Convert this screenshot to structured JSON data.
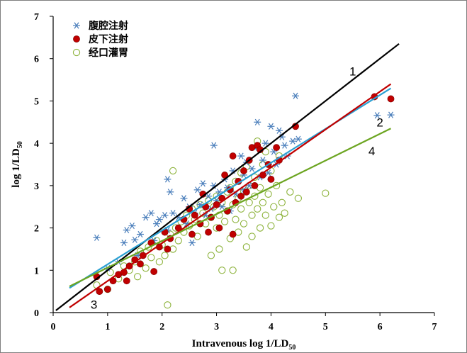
{
  "chart_data": {
    "type": "scatter",
    "xlabel": "Intravenous log 1/LD",
    "xlabel_sub": "50",
    "ylabel": "log 1/LD",
    "ylabel_sub": "50",
    "xlim": [
      0,
      7
    ],
    "ylim": [
      0,
      7
    ],
    "xticks": [
      "0",
      "1",
      "2",
      "3",
      "4",
      "5",
      "6",
      "7"
    ],
    "yticks": [
      "0",
      "1",
      "2",
      "3",
      "4",
      "5",
      "6",
      "7"
    ],
    "grid": false,
    "legend_position": "top-left",
    "series": [
      {
        "name": "腹腔注射",
        "marker": "asterisk",
        "color": "#4a7ebb",
        "points": [
          [
            0.8,
            1.77
          ],
          [
            1.0,
            1.05
          ],
          [
            1.2,
            1.2
          ],
          [
            1.3,
            1.65
          ],
          [
            1.35,
            1.95
          ],
          [
            1.45,
            2.05
          ],
          [
            1.5,
            1.72
          ],
          [
            1.55,
            1.35
          ],
          [
            1.6,
            1.85
          ],
          [
            1.7,
            2.25
          ],
          [
            1.8,
            2.35
          ],
          [
            1.85,
            1.7
          ],
          [
            1.9,
            2.1
          ],
          [
            1.95,
            2.2
          ],
          [
            2.05,
            2.3
          ],
          [
            2.1,
            1.95
          ],
          [
            2.1,
            3.15
          ],
          [
            2.15,
            2.85
          ],
          [
            2.2,
            2.35
          ],
          [
            2.3,
            2.25
          ],
          [
            2.4,
            2.7
          ],
          [
            2.45,
            2.1
          ],
          [
            2.5,
            2.5
          ],
          [
            2.55,
            1.65
          ],
          [
            2.6,
            2.35
          ],
          [
            2.65,
            2.9
          ],
          [
            2.7,
            2.55
          ],
          [
            2.75,
            3.05
          ],
          [
            2.8,
            2.3
          ],
          [
            2.85,
            2.75
          ],
          [
            2.9,
            2.45
          ],
          [
            2.95,
            3.0
          ],
          [
            2.95,
            3.95
          ],
          [
            3.0,
            2.65
          ],
          [
            3.05,
            2.85
          ],
          [
            3.1,
            2.5
          ],
          [
            3.15,
            3.15
          ],
          [
            3.2,
            2.95
          ],
          [
            3.25,
            2.4
          ],
          [
            3.3,
            3.35
          ],
          [
            3.35,
            2.8
          ],
          [
            3.4,
            3.1
          ],
          [
            3.45,
            3.7
          ],
          [
            3.5,
            2.9
          ],
          [
            3.5,
            3.25
          ],
          [
            3.55,
            3.55
          ],
          [
            3.6,
            3.0
          ],
          [
            3.65,
            3.4
          ],
          [
            3.7,
            3.9
          ],
          [
            3.75,
            4.5
          ],
          [
            3.8,
            3.2
          ],
          [
            3.85,
            3.6
          ],
          [
            3.9,
            4.0
          ],
          [
            3.95,
            3.3
          ],
          [
            4.0,
            4.4
          ],
          [
            4.05,
            3.8
          ],
          [
            4.1,
            3.5
          ],
          [
            4.15,
            4.3
          ],
          [
            4.2,
            4.15
          ],
          [
            4.25,
            3.95
          ],
          [
            4.3,
            3.7
          ],
          [
            4.4,
            4.05
          ],
          [
            4.45,
            5.12
          ],
          [
            4.5,
            4.1
          ],
          [
            5.95,
            4.66
          ],
          [
            6.2,
            4.67
          ]
        ]
      },
      {
        "name": "皮下注射",
        "marker": "filled-circle",
        "color": "#c00000",
        "points": [
          [
            0.8,
            0.85
          ],
          [
            0.85,
            0.5
          ],
          [
            1.0,
            0.55
          ],
          [
            1.1,
            0.75
          ],
          [
            1.2,
            0.9
          ],
          [
            1.3,
            0.95
          ],
          [
            1.35,
            0.75
          ],
          [
            1.4,
            1.1
          ],
          [
            1.5,
            1.25
          ],
          [
            1.6,
            1.15
          ],
          [
            1.65,
            1.35
          ],
          [
            1.8,
            1.65
          ],
          [
            1.85,
            0.97
          ],
          [
            1.95,
            1.55
          ],
          [
            2.05,
            1.9
          ],
          [
            2.1,
            1.5
          ],
          [
            2.15,
            1.75
          ],
          [
            2.3,
            2.0
          ],
          [
            2.4,
            2.2
          ],
          [
            2.5,
            2.45
          ],
          [
            2.55,
            1.85
          ],
          [
            2.6,
            2.3
          ],
          [
            2.7,
            2.1
          ],
          [
            2.75,
            2.8
          ],
          [
            2.8,
            2.5
          ],
          [
            2.85,
            1.9
          ],
          [
            2.9,
            2.25
          ],
          [
            3.0,
            2.55
          ],
          [
            3.05,
            2.0
          ],
          [
            3.1,
            2.7
          ],
          [
            3.15,
            3.25
          ],
          [
            3.2,
            2.4
          ],
          [
            3.25,
            2.9
          ],
          [
            3.3,
            3.7
          ],
          [
            3.3,
            1.85
          ],
          [
            3.35,
            2.6
          ],
          [
            3.4,
            3.1
          ],
          [
            3.45,
            2.75
          ],
          [
            3.5,
            3.35
          ],
          [
            3.55,
            2.85
          ],
          [
            3.6,
            3.6
          ],
          [
            3.65,
            3.9
          ],
          [
            3.7,
            3.0
          ],
          [
            3.75,
            3.95
          ],
          [
            3.8,
            3.85
          ],
          [
            3.85,
            3.25
          ],
          [
            3.95,
            3.5
          ],
          [
            4.0,
            3.15
          ],
          [
            4.1,
            3.9
          ],
          [
            4.15,
            3.6
          ],
          [
            4.45,
            4.4
          ],
          [
            5.9,
            5.1
          ],
          [
            6.2,
            5.05
          ]
        ]
      },
      {
        "name": "经口灌胃",
        "marker": "open-circle",
        "color": "#8db33c",
        "points": [
          [
            0.8,
            0.65
          ],
          [
            1.0,
            0.55
          ],
          [
            1.05,
            0.95
          ],
          [
            1.2,
            0.8
          ],
          [
            1.3,
            1.1
          ],
          [
            1.4,
            1.0
          ],
          [
            1.5,
            1.2
          ],
          [
            1.55,
            0.85
          ],
          [
            1.6,
            1.45
          ],
          [
            1.7,
            1.05
          ],
          [
            1.75,
            1.55
          ],
          [
            1.8,
            1.3
          ],
          [
            1.9,
            1.7
          ],
          [
            1.95,
            1.2
          ],
          [
            2.0,
            1.6
          ],
          [
            2.05,
            1.35
          ],
          [
            2.1,
            0.18
          ],
          [
            2.15,
            1.85
          ],
          [
            2.2,
            1.5
          ],
          [
            2.2,
            3.35
          ],
          [
            2.25,
            2.0
          ],
          [
            2.3,
            1.7
          ],
          [
            2.35,
            2.15
          ],
          [
            2.4,
            1.9
          ],
          [
            2.45,
            2.3
          ],
          [
            2.5,
            2.05
          ],
          [
            2.55,
            2.45
          ],
          [
            2.6,
            2.2
          ],
          [
            2.65,
            1.8
          ],
          [
            2.7,
            2.55
          ],
          [
            2.75,
            2.35
          ],
          [
            2.8,
            2.1
          ],
          [
            2.85,
            2.65
          ],
          [
            2.9,
            2.25
          ],
          [
            2.9,
            1.35
          ],
          [
            2.95,
            2.5
          ],
          [
            3.0,
            2.0
          ],
          [
            3.0,
            2.75
          ],
          [
            3.05,
            2.3
          ],
          [
            3.05,
            1.5
          ],
          [
            3.1,
            2.6
          ],
          [
            3.1,
            1.0
          ],
          [
            3.15,
            2.15
          ],
          [
            3.2,
            2.85
          ],
          [
            3.2,
            2.4
          ],
          [
            3.25,
            1.75
          ],
          [
            3.25,
            2.95
          ],
          [
            3.3,
            2.55
          ],
          [
            3.3,
            1.0
          ],
          [
            3.35,
            2.2
          ],
          [
            3.35,
            3.1
          ],
          [
            3.4,
            2.7
          ],
          [
            3.4,
            1.9
          ],
          [
            3.45,
            2.45
          ],
          [
            3.45,
            3.3
          ],
          [
            3.5,
            2.85
          ],
          [
            3.5,
            2.1
          ],
          [
            3.55,
            1.55
          ],
          [
            3.55,
            3.45
          ],
          [
            3.6,
            2.6
          ],
          [
            3.6,
            3.0
          ],
          [
            3.65,
            2.3
          ],
          [
            3.65,
            1.8
          ],
          [
            3.7,
            3.2
          ],
          [
            3.7,
            2.75
          ],
          [
            3.75,
            2.45
          ],
          [
            3.75,
            4.05
          ],
          [
            3.8,
            2.95
          ],
          [
            3.8,
            2.0
          ],
          [
            3.85,
            3.5
          ],
          [
            3.85,
            2.6
          ],
          [
            3.9,
            2.3
          ],
          [
            3.9,
            3.8
          ],
          [
            3.95,
            2.8
          ],
          [
            4.0,
            2.05
          ],
          [
            4.0,
            3.35
          ],
          [
            4.05,
            2.5
          ],
          [
            4.1,
            3.0
          ],
          [
            4.15,
            2.25
          ],
          [
            4.15,
            3.7
          ],
          [
            4.2,
            2.6
          ],
          [
            4.25,
            2.35
          ],
          [
            4.35,
            2.85
          ],
          [
            4.5,
            2.7
          ],
          [
            5.0,
            2.82
          ]
        ]
      }
    ],
    "trend_lines": [
      {
        "label": "1",
        "color": "#000000",
        "x": [
          0.05,
          6.35
        ],
        "y": [
          0.05,
          6.35
        ]
      },
      {
        "label": "2",
        "color": "#2aa0d2",
        "x": [
          0.3,
          6.2
        ],
        "y": [
          0.58,
          5.3
        ]
      },
      {
        "label": "",
        "color": "#c00000",
        "x": [
          0.3,
          6.2
        ],
        "y": [
          0.12,
          5.4
        ]
      },
      {
        "label": "4",
        "color": "#6ca521",
        "x": [
          0.3,
          6.2
        ],
        "y": [
          0.62,
          4.35
        ]
      }
    ],
    "annotations": [
      {
        "text": "1",
        "x": 5.5,
        "y": 5.6
      },
      {
        "text": "2",
        "x": 6.0,
        "y": 4.4
      },
      {
        "text": "4",
        "x": 5.85,
        "y": 3.72
      },
      {
        "text": "3",
        "x": 0.75,
        "y": 0.09
      }
    ]
  }
}
